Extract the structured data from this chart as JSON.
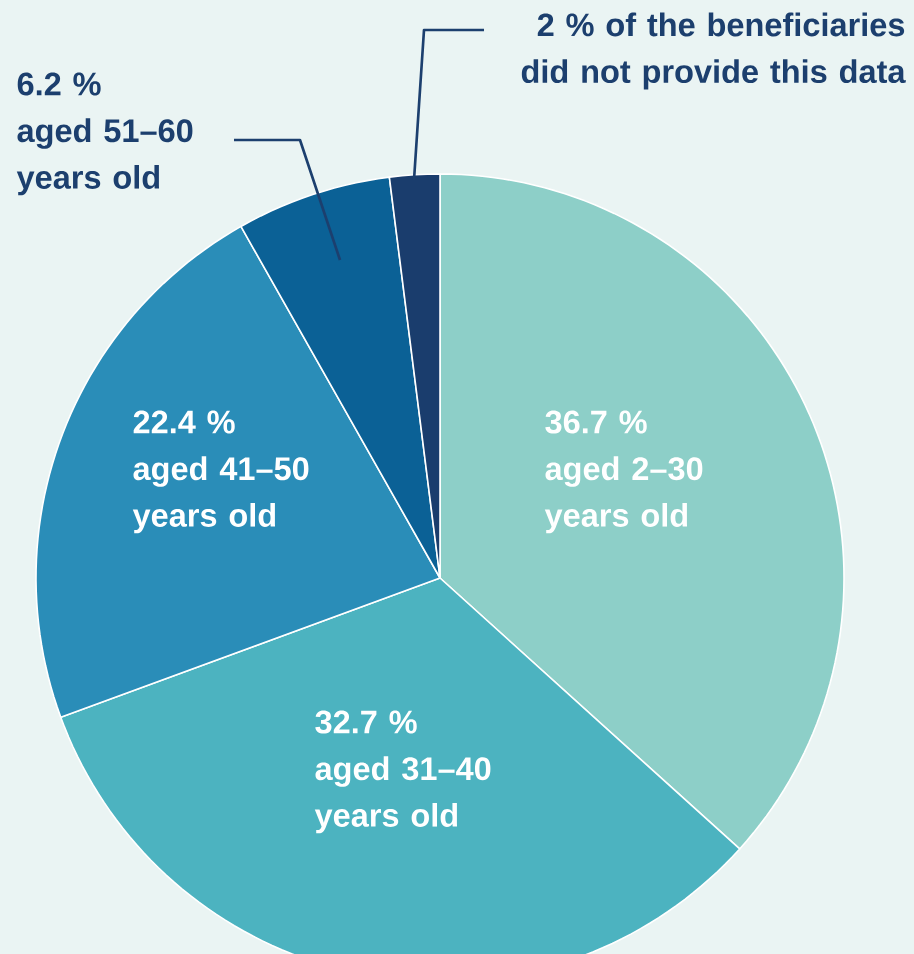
{
  "chart_data": {
    "type": "pie",
    "categories": [
      "aged 2–30 years old",
      "aged 31–40 years old",
      "aged 41–50 years old",
      "aged 51–60 years old",
      "of the beneficiaries did not provide this data"
    ],
    "values": [
      36.7,
      32.7,
      22.4,
      6.2,
      2
    ],
    "value_labels": [
      "36.7 %",
      "32.7 %",
      "22.4 %",
      "6.2 %",
      "2 %"
    ],
    "colors": [
      "#8dcfc8",
      "#4cb3c0",
      "#2a8db8",
      "#0b6196",
      "#1a3d6d"
    ]
  }
}
